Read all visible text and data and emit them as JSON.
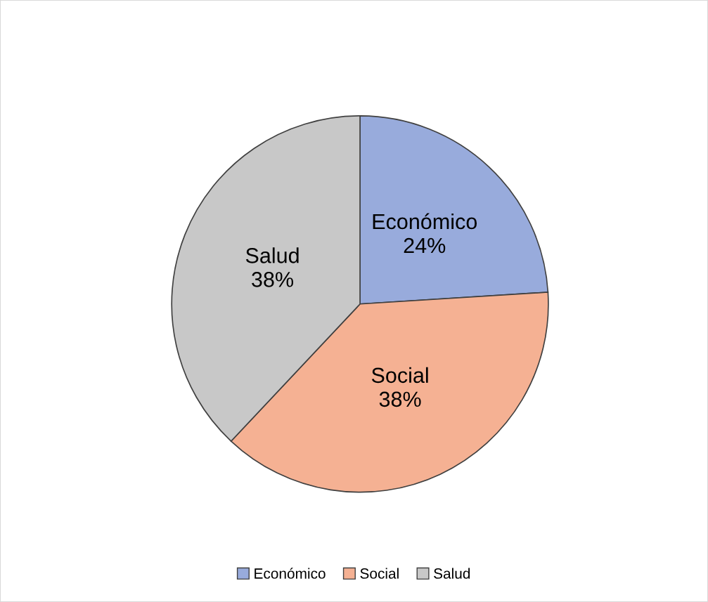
{
  "chart_data": {
    "type": "pie",
    "categories": [
      "Económico",
      "Social",
      "Salud"
    ],
    "values": [
      24,
      38,
      38
    ],
    "value_labels": [
      "24%",
      "38%",
      "38%"
    ],
    "colors": [
      "#98abdc",
      "#f5b193",
      "#c8c8c8"
    ],
    "legend": "bottom"
  }
}
